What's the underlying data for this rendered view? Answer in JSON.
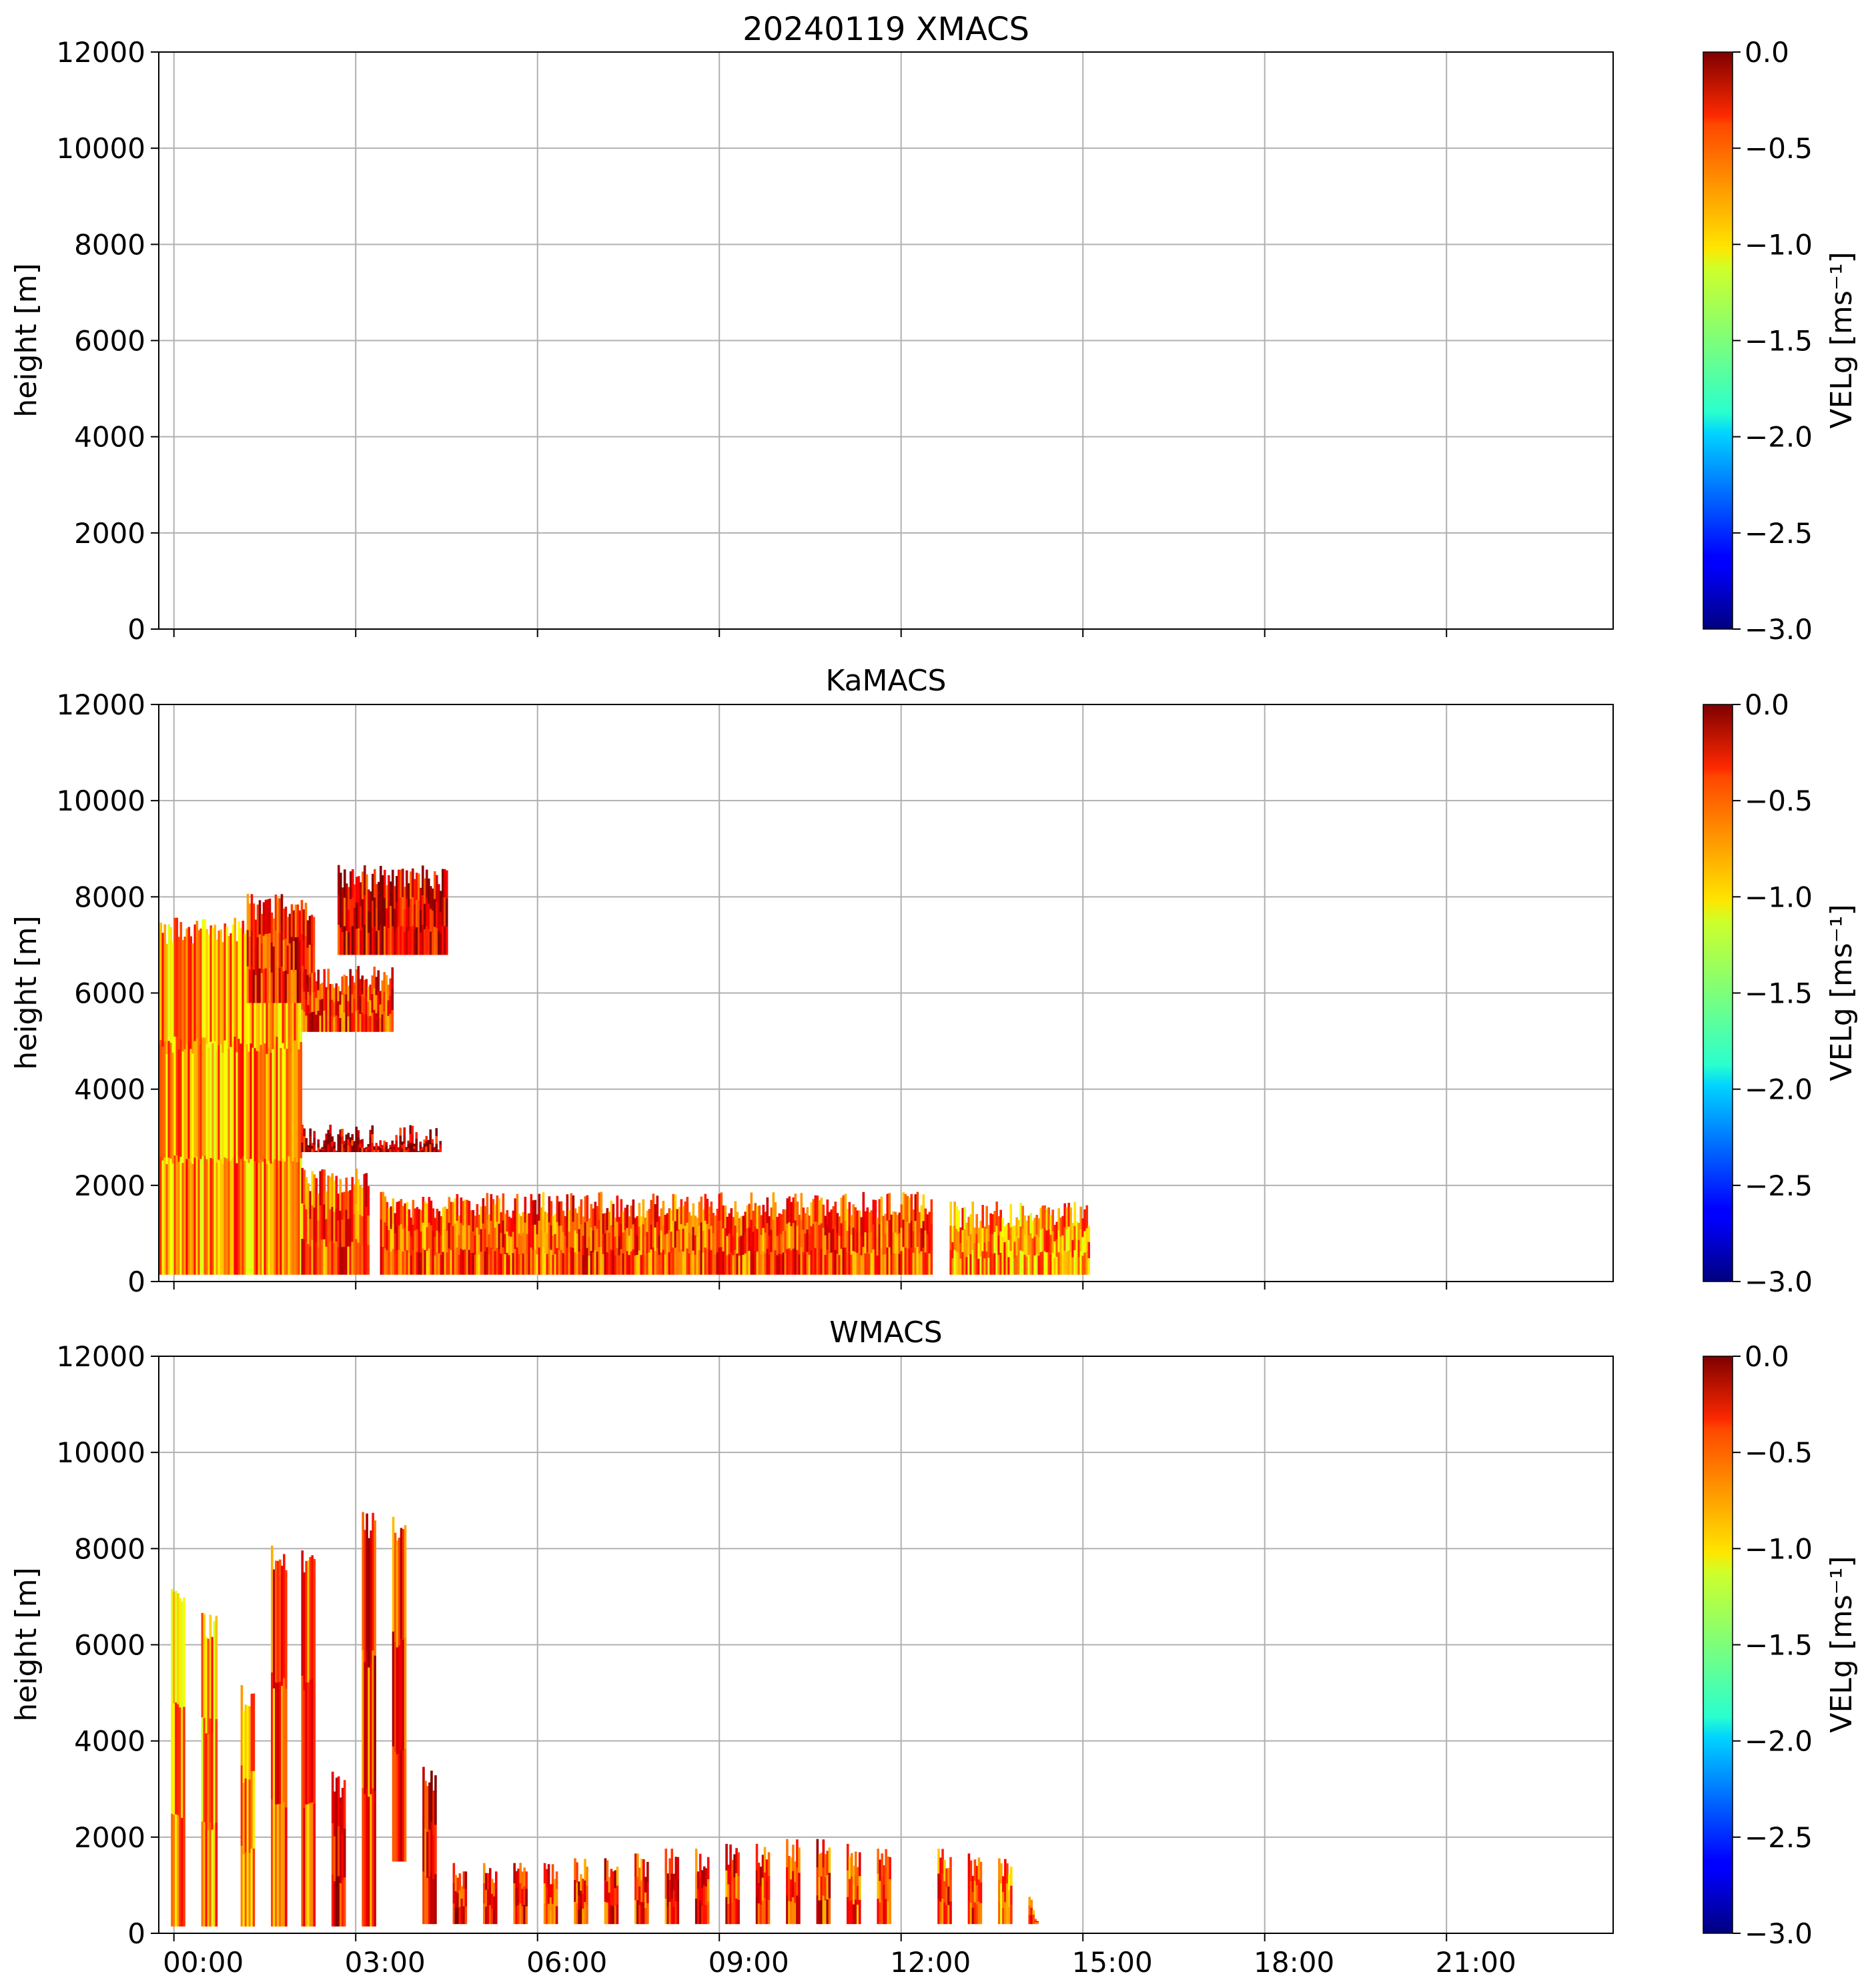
{
  "chart_data": [
    {
      "type": "heatmap",
      "title": "20240119 XMACS",
      "ylabel": "height [m]",
      "xlim": [
        0,
        24
      ],
      "ylim": [
        0,
        12000
      ],
      "yticks": [
        "0",
        "2000",
        "4000",
        "6000",
        "8000",
        "10000",
        "12000"
      ],
      "xticks": [],
      "grid": true,
      "colorbar": {
        "label": "VELg [ms⁻¹]",
        "range": [
          -3.0,
          0.0
        ],
        "colormap": "jet",
        "ticks": [
          "0.0",
          "−0.5",
          "−1.0",
          "−1.5",
          "−2.0",
          "−2.5",
          "−3.0"
        ]
      },
      "echo_regions": []
    },
    {
      "type": "heatmap",
      "title": "KaMACS",
      "ylabel": "height [m]",
      "xlim": [
        0,
        24
      ],
      "ylim": [
        0,
        12000
      ],
      "yticks": [
        "0",
        "2000",
        "4000",
        "6000",
        "8000",
        "10000",
        "12000"
      ],
      "xticks": [],
      "grid": true,
      "colorbar": {
        "label": "VELg [ms⁻¹]",
        "range": [
          -3.0,
          0.0
        ],
        "colormap": "jet",
        "ticks": [
          "0.0",
          "−0.5",
          "−1.0",
          "−1.5",
          "−2.0",
          "−2.5",
          "−3.0"
        ]
      },
      "echo_regions": [
        {
          "time_h": [
            -0.3,
            2.1
          ],
          "height_m": [
            150,
            7400
          ],
          "mean_velg": -0.8
        },
        {
          "time_h": [
            1.2,
            2.3
          ],
          "height_m": [
            5800,
            7900
          ],
          "mean_velg": -0.4
        },
        {
          "time_h": [
            2.7,
            4.5
          ],
          "height_m": [
            6800,
            8500
          ],
          "mean_velg": -0.3
        },
        {
          "time_h": [
            2.1,
            3.6
          ],
          "height_m": [
            5200,
            6400
          ],
          "mean_velg": -0.5
        },
        {
          "time_h": [
            2.1,
            4.4
          ],
          "height_m": [
            2700,
            3100
          ],
          "mean_velg": -0.2
        },
        {
          "time_h": [
            2.1,
            3.2
          ],
          "height_m": [
            150,
            2200
          ],
          "mean_velg": -0.6
        },
        {
          "time_h": [
            3.4,
            12.5
          ],
          "height_m": [
            150,
            1700
          ],
          "mean_velg": -0.6
        },
        {
          "time_h": [
            12.8,
            15.1
          ],
          "height_m": [
            150,
            1500
          ],
          "mean_velg": -0.8
        }
      ]
    },
    {
      "type": "heatmap",
      "title": "WMACS",
      "ylabel": "height [m]",
      "xlim": [
        0,
        24
      ],
      "ylim": [
        0,
        12000
      ],
      "yticks": [
        "0",
        "2000",
        "4000",
        "6000",
        "8000",
        "10000",
        "12000"
      ],
      "xticks": [
        "00:00",
        "03:00",
        "06:00",
        "09:00",
        "12:00",
        "15:00",
        "18:00",
        "21:00"
      ],
      "grid": true,
      "colorbar": {
        "label": "VELg [ms⁻¹]",
        "range": [
          -3.0,
          0.0
        ],
        "colormap": "jet",
        "ticks": [
          "0.0",
          "−0.5",
          "−1.0",
          "−1.5",
          "−2.0",
          "−2.5",
          "−3.0"
        ]
      },
      "echo_regions": [
        {
          "time_h": [
            -0.05,
            0.15
          ],
          "height_m": [
            150,
            7000
          ],
          "mean_velg": -0.8
        },
        {
          "time_h": [
            0.45,
            0.7
          ],
          "height_m": [
            150,
            6500
          ],
          "mean_velg": -0.8
        },
        {
          "time_h": [
            1.1,
            1.3
          ],
          "height_m": [
            150,
            5000
          ],
          "mean_velg": -0.8
        },
        {
          "time_h": [
            1.6,
            1.85
          ],
          "height_m": [
            150,
            7900
          ],
          "mean_velg": -0.6
        },
        {
          "time_h": [
            2.1,
            2.3
          ],
          "height_m": [
            150,
            7800
          ],
          "mean_velg": -0.6
        },
        {
          "time_h": [
            2.6,
            2.8
          ],
          "height_m": [
            150,
            3200
          ],
          "mean_velg": -0.4
        },
        {
          "time_h": [
            3.1,
            3.3
          ],
          "height_m": [
            150,
            8600
          ],
          "mean_velg": -0.5
        },
        {
          "time_h": [
            3.6,
            3.8
          ],
          "height_m": [
            1500,
            8500
          ],
          "mean_velg": -0.5
        },
        {
          "time_h": [
            4.1,
            4.3
          ],
          "height_m": [
            200,
            3300
          ],
          "mean_velg": -0.4
        },
        {
          "time_h": [
            4.6,
            4.8
          ],
          "height_m": [
            200,
            1300
          ],
          "mean_velg": -0.4
        },
        {
          "time_h": [
            5.1,
            5.3
          ],
          "height_m": [
            200,
            1300
          ],
          "mean_velg": -0.5
        },
        {
          "time_h": [
            5.6,
            5.8
          ],
          "height_m": [
            200,
            1300
          ],
          "mean_velg": -0.5
        },
        {
          "time_h": [
            6.1,
            6.3
          ],
          "height_m": [
            200,
            1300
          ],
          "mean_velg": -0.5
        },
        {
          "time_h": [
            6.6,
            6.8
          ],
          "height_m": [
            200,
            1400
          ],
          "mean_velg": -0.5
        },
        {
          "time_h": [
            7.1,
            7.3
          ],
          "height_m": [
            200,
            1400
          ],
          "mean_velg": -0.5
        },
        {
          "time_h": [
            7.6,
            7.8
          ],
          "height_m": [
            200,
            1500
          ],
          "mean_velg": -0.5
        },
        {
          "time_h": [
            8.1,
            8.3
          ],
          "height_m": [
            200,
            1600
          ],
          "mean_velg": -0.5
        },
        {
          "time_h": [
            8.6,
            8.8
          ],
          "height_m": [
            200,
            1600
          ],
          "mean_velg": -0.5
        },
        {
          "time_h": [
            9.1,
            9.3
          ],
          "height_m": [
            200,
            1700
          ],
          "mean_velg": -0.5
        },
        {
          "time_h": [
            9.6,
            9.8
          ],
          "height_m": [
            200,
            1700
          ],
          "mean_velg": -0.5
        },
        {
          "time_h": [
            10.1,
            10.3
          ],
          "height_m": [
            200,
            1800
          ],
          "mean_velg": -0.5
        },
        {
          "time_h": [
            10.6,
            10.8
          ],
          "height_m": [
            200,
            1800
          ],
          "mean_velg": -0.5
        },
        {
          "time_h": [
            11.1,
            11.3
          ],
          "height_m": [
            200,
            1700
          ],
          "mean_velg": -0.6
        },
        {
          "time_h": [
            11.6,
            11.8
          ],
          "height_m": [
            200,
            1600
          ],
          "mean_velg": -0.6
        },
        {
          "time_h": [
            12.6,
            12.8
          ],
          "height_m": [
            200,
            1600
          ],
          "mean_velg": -0.6
        },
        {
          "time_h": [
            13.1,
            13.3
          ],
          "height_m": [
            200,
            1500
          ],
          "mean_velg": -0.6
        },
        {
          "time_h": [
            13.6,
            13.8
          ],
          "height_m": [
            200,
            1400
          ],
          "mean_velg": -0.8
        },
        {
          "time_h": [
            14.1,
            14.25
          ],
          "height_m": [
            200,
            600
          ],
          "mean_velg": -0.6
        }
      ]
    }
  ]
}
